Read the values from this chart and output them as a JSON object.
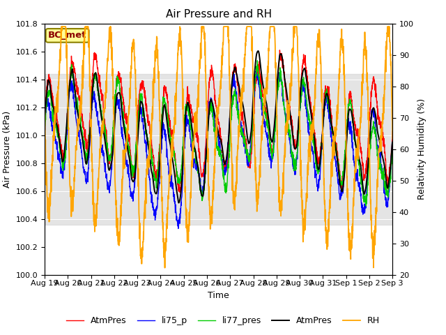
{
  "title": "Air Pressure and RH",
  "xlabel": "Time",
  "ylabel_left": "Air Pressure (kPa)",
  "ylabel_right": "Relativity Humidity (%)",
  "ylim_left": [
    100.0,
    101.8
  ],
  "ylim_right": [
    20,
    100
  ],
  "yticks_left": [
    100.0,
    100.2,
    100.4,
    100.6,
    100.8,
    101.0,
    101.2,
    101.4,
    101.6,
    101.8
  ],
  "yticks_right": [
    20,
    30,
    40,
    50,
    60,
    70,
    80,
    90,
    100
  ],
  "colors": {
    "AtmPres_red": "#FF0000",
    "li75_p": "#0000FF",
    "li77_pres": "#00CC00",
    "AtmPres_black": "#000000",
    "RH": "#FFA500"
  },
  "legend_labels": [
    "AtmPres",
    "li75_p",
    "li77_pres",
    "AtmPres",
    "RH"
  ],
  "station_label": "BC_met",
  "station_label_color": "#8B0000",
  "station_label_bg": "#FFFF99",
  "band_lo": 100.36,
  "band_hi": 101.44,
  "band_color": "#D3D3D3",
  "band_alpha": 0.6,
  "title_fontsize": 11,
  "label_fontsize": 9,
  "tick_fontsize": 8,
  "legend_fontsize": 9,
  "line_width": 1.0
}
